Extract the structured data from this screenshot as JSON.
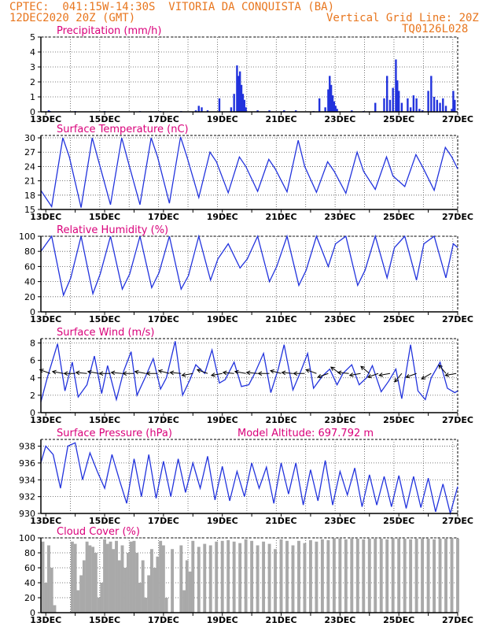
{
  "header": {
    "line1": "CPTEC:  041:15W-14:30S  VITORIA DA CONQUISTA (BA)",
    "line2_left": "12DEC2020 20Z (GMT)",
    "line2_right": "Vertical Grid Line: 20Z",
    "line3_right": "TQ0126L028"
  },
  "colors": {
    "line": "#2233dd",
    "title": "#d9007a",
    "header": "#e8761e",
    "cloud": "#a9a9a9",
    "grid": "#555555"
  },
  "chart_data": [
    {
      "type": "bar",
      "title": "Precipitation (mm/h)",
      "ylim": [
        0,
        5
      ],
      "yticks": [
        0,
        1,
        2,
        3,
        4,
        5
      ],
      "x_ticks": [
        "13DEC",
        "15DEC",
        "17DEC",
        "19DEC",
        "21DEC",
        "23DEC",
        "25DEC",
        "27DEC"
      ],
      "x_domain_days": [
        12.8333,
        27.0
      ],
      "x": [
        13.1,
        13.15,
        14.0,
        15.0,
        16.2,
        16.9,
        17.6,
        18.1,
        18.2,
        18.3,
        18.5,
        18.9,
        19.3,
        19.4,
        19.5,
        19.55,
        19.6,
        19.65,
        19.7,
        19.75,
        19.8,
        20.2,
        20.6,
        21.1,
        21.5,
        22.1,
        22.3,
        22.5,
        22.6,
        22.65,
        22.7,
        22.75,
        22.8,
        22.85,
        22.9,
        23.4,
        23.8,
        24.2,
        24.5,
        24.6,
        24.7,
        24.8,
        24.9,
        24.95,
        25.0,
        25.1,
        25.3,
        25.4,
        25.5,
        25.6,
        25.7,
        25.8,
        26.0,
        26.1,
        26.2,
        26.3,
        26.4,
        26.5,
        26.6,
        26.8,
        26.85,
        26.9
      ],
      "values": [
        0.1,
        0.05,
        0.05,
        0.05,
        0.05,
        0.05,
        0.05,
        0.1,
        0.4,
        0.3,
        0.1,
        0.9,
        0.3,
        1.2,
        3.1,
        2.4,
        2.7,
        1.8,
        1.2,
        0.8,
        0.3,
        0.1,
        0.1,
        0.1,
        0.1,
        0.05,
        0.9,
        0.3,
        1.5,
        2.4,
        1.8,
        1.1,
        0.7,
        0.4,
        0.2,
        0.1,
        0.05,
        0.6,
        0.9,
        2.4,
        0.8,
        1.6,
        3.5,
        2.1,
        1.4,
        0.6,
        0.9,
        0.3,
        1.1,
        0.9,
        0.2,
        0.1,
        1.4,
        2.4,
        1.0,
        0.8,
        0.6,
        0.9,
        0.4,
        0.2,
        1.4,
        0.8
      ]
    },
    {
      "type": "line",
      "title": "Surface Temperature (nC)",
      "ylim": [
        15,
        30.5
      ],
      "yticks": [
        15,
        18,
        21,
        24,
        27,
        30
      ],
      "x_ticks": [
        "13DEC",
        "15DEC",
        "17DEC",
        "19DEC",
        "21DEC",
        "23DEC",
        "25DEC",
        "27DEC"
      ],
      "x_domain_days": [
        12.8333,
        27.0
      ],
      "x": [
        12.83,
        13.2,
        13.58,
        13.8,
        14.2,
        14.58,
        14.8,
        15.2,
        15.58,
        15.8,
        16.2,
        16.58,
        16.8,
        17.2,
        17.58,
        17.8,
        18.2,
        18.58,
        18.8,
        19.2,
        19.58,
        19.8,
        20.2,
        20.58,
        20.8,
        21.2,
        21.58,
        21.8,
        22.2,
        22.58,
        22.8,
        23.2,
        23.58,
        23.8,
        24.2,
        24.58,
        24.8,
        25.2,
        25.58,
        25.8,
        26.2,
        26.58,
        26.8,
        27.0
      ],
      "values": [
        19,
        15.6,
        30,
        26,
        15.4,
        30,
        25,
        16,
        30,
        25,
        16,
        30,
        26,
        16.3,
        30.2,
        26,
        17.5,
        27,
        25,
        18.5,
        26,
        24,
        18.8,
        25.5,
        23.5,
        18.7,
        29.5,
        24,
        18.6,
        25,
        23,
        18.4,
        27,
        23,
        19.2,
        26,
        22,
        19.8,
        26.5,
        24,
        19,
        28,
        26,
        23.5
      ]
    },
    {
      "type": "line",
      "title": "Relative Humidity (%)",
      "ylim": [
        0,
        100
      ],
      "yticks": [
        0,
        20,
        40,
        60,
        80,
        100
      ],
      "x_ticks": [
        "13DEC",
        "15DEC",
        "17DEC",
        "19DEC",
        "21DEC",
        "23DEC",
        "25DEC",
        "27DEC"
      ],
      "x_domain_days": [
        12.8333,
        27.0
      ],
      "x": [
        12.83,
        13.2,
        13.6,
        13.85,
        14.2,
        14.6,
        14.85,
        15.2,
        15.6,
        15.85,
        16.2,
        16.6,
        16.85,
        17.2,
        17.6,
        17.85,
        18.2,
        18.6,
        18.85,
        19.2,
        19.6,
        19.85,
        20.2,
        20.6,
        20.85,
        21.2,
        21.6,
        21.85,
        22.2,
        22.6,
        22.85,
        23.2,
        23.6,
        23.85,
        24.2,
        24.6,
        24.85,
        25.2,
        25.6,
        25.85,
        26.2,
        26.6,
        26.85,
        27.0
      ],
      "values": [
        80,
        100,
        22,
        45,
        100,
        24,
        50,
        100,
        30,
        50,
        100,
        32,
        52,
        100,
        30,
        48,
        100,
        42,
        70,
        90,
        58,
        70,
        100,
        40,
        60,
        100,
        35,
        55,
        100,
        60,
        90,
        100,
        35,
        55,
        100,
        45,
        85,
        100,
        42,
        90,
        100,
        45,
        90,
        85
      ]
    },
    {
      "type": "line",
      "title": "Surface Wind (m/s)",
      "ylim": [
        0,
        8.5
      ],
      "yticks": [
        0,
        2,
        4,
        6,
        8
      ],
      "x_ticks": [
        "13DEC",
        "15DEC",
        "17DEC",
        "19DEC",
        "21DEC",
        "23DEC",
        "25DEC",
        "27DEC"
      ],
      "x_domain_days": [
        12.8333,
        27.0
      ],
      "x": [
        12.83,
        13.05,
        13.4,
        13.65,
        13.9,
        14.1,
        14.4,
        14.65,
        14.9,
        15.1,
        15.4,
        15.65,
        15.9,
        16.1,
        16.4,
        16.65,
        16.9,
        17.1,
        17.4,
        17.65,
        17.9,
        18.1,
        18.4,
        18.65,
        18.9,
        19.1,
        19.4,
        19.65,
        19.9,
        20.1,
        20.4,
        20.65,
        20.9,
        21.1,
        21.4,
        21.65,
        21.9,
        22.1,
        22.4,
        22.65,
        22.9,
        23.1,
        23.4,
        23.65,
        23.9,
        24.1,
        24.4,
        24.65,
        24.9,
        25.1,
        25.4,
        25.65,
        25.9,
        26.1,
        26.4,
        26.65,
        26.9,
        27.0
      ],
      "values": [
        1.2,
        4.0,
        7.9,
        2.5,
        5.8,
        1.8,
        3.2,
        6.5,
        2.2,
        5.4,
        1.5,
        4.8,
        7.0,
        2.0,
        4.2,
        6.2,
        2.7,
        4.0,
        8.2,
        2.0,
        3.8,
        5.5,
        4.5,
        7.2,
        3.4,
        3.8,
        5.8,
        3.0,
        3.2,
        4.5,
        6.8,
        2.3,
        5.0,
        7.8,
        2.6,
        4.6,
        6.8,
        2.8,
        4.2,
        5.0,
        3.2,
        4.5,
        5.5,
        3.2,
        4.0,
        5.4,
        2.4,
        3.6,
        5.0,
        1.6,
        7.8,
        2.5,
        1.5,
        4.0,
        5.8,
        2.8,
        2.3,
        2.5
      ],
      "arrows": [
        {
          "day": 13.15,
          "angle": 160
        },
        {
          "day": 13.6,
          "angle": 170
        },
        {
          "day": 14.0,
          "angle": 180
        },
        {
          "day": 14.4,
          "angle": 175
        },
        {
          "day": 14.8,
          "angle": 170
        },
        {
          "day": 15.2,
          "angle": 180
        },
        {
          "day": 15.6,
          "angle": 175
        },
        {
          "day": 16.0,
          "angle": 180
        },
        {
          "day": 16.4,
          "angle": 170
        },
        {
          "day": 16.8,
          "angle": 180
        },
        {
          "day": 17.2,
          "angle": 165
        },
        {
          "day": 17.6,
          "angle": 175
        },
        {
          "day": 18.0,
          "angle": 190
        },
        {
          "day": 18.5,
          "angle": 160
        },
        {
          "day": 19.0,
          "angle": 190
        },
        {
          "day": 19.4,
          "angle": 175
        },
        {
          "day": 19.8,
          "angle": 170
        },
        {
          "day": 20.2,
          "angle": 175
        },
        {
          "day": 20.6,
          "angle": 180
        },
        {
          "day": 21.0,
          "angle": 165
        },
        {
          "day": 21.4,
          "angle": 175
        },
        {
          "day": 21.8,
          "angle": 180
        },
        {
          "day": 22.2,
          "angle": 160
        },
        {
          "day": 22.6,
          "angle": 200
        },
        {
          "day": 23.0,
          "angle": 145
        },
        {
          "day": 23.3,
          "angle": 175
        },
        {
          "day": 23.7,
          "angle": 190
        },
        {
          "day": 24.0,
          "angle": 140
        },
        {
          "day": 24.3,
          "angle": 200
        },
        {
          "day": 24.7,
          "angle": 190
        },
        {
          "day": 25.1,
          "angle": 230
        },
        {
          "day": 25.6,
          "angle": 200
        },
        {
          "day": 26.1,
          "angle": 210
        },
        {
          "day": 26.6,
          "angle": 130
        },
        {
          "day": 26.95,
          "angle": 190
        }
      ]
    },
    {
      "type": "line",
      "title": "Surface Pressure (hPa)",
      "annotation": "Model Altitude: 697.792 m",
      "ylim": [
        930,
        938.8
      ],
      "yticks": [
        930,
        932,
        934,
        936,
        938
      ],
      "x_ticks": [
        "13DEC",
        "15DEC",
        "17DEC",
        "19DEC",
        "21DEC",
        "23DEC",
        "25DEC",
        "27DEC"
      ],
      "x_domain_days": [
        12.8333,
        27.0
      ],
      "x": [
        12.83,
        13.0,
        13.25,
        13.5,
        13.75,
        14.0,
        14.25,
        14.5,
        14.75,
        15.0,
        15.25,
        15.5,
        15.75,
        16.0,
        16.25,
        16.5,
        16.75,
        17.0,
        17.25,
        17.5,
        17.75,
        18.0,
        18.25,
        18.5,
        18.75,
        19.0,
        19.25,
        19.5,
        19.75,
        20.0,
        20.25,
        20.5,
        20.75,
        21.0,
        21.25,
        21.5,
        21.75,
        22.0,
        22.25,
        22.5,
        22.75,
        23.0,
        23.25,
        23.5,
        23.75,
        24.0,
        24.25,
        24.5,
        24.75,
        25.0,
        25.25,
        25.5,
        25.75,
        26.0,
        26.25,
        26.5,
        26.75,
        27.0
      ],
      "values": [
        936,
        938,
        937,
        933,
        938,
        938.4,
        934,
        937.2,
        935,
        933,
        937,
        934,
        931.2,
        936.5,
        932,
        937,
        931.8,
        936.2,
        932,
        936.5,
        932.5,
        936,
        933,
        936.8,
        931.6,
        935.6,
        931.5,
        935,
        932,
        936,
        933,
        935.5,
        931.2,
        936,
        932.3,
        936,
        931,
        935.2,
        931.5,
        936.3,
        931,
        935,
        932.2,
        935.4,
        930.8,
        934.6,
        931,
        934.4,
        930.8,
        934.5,
        930.6,
        934.4,
        930.7,
        934.2,
        930.2,
        933.5,
        930,
        933.2
      ]
    },
    {
      "type": "bar",
      "title": "Cloud Cover (%)",
      "ylim": [
        0,
        100
      ],
      "yticks": [
        0,
        20,
        40,
        60,
        80,
        100
      ],
      "x_ticks": [
        "13DEC",
        "15DEC",
        "17DEC",
        "19DEC",
        "21DEC",
        "23DEC",
        "25DEC",
        "27DEC"
      ],
      "x_domain_days": [
        12.8333,
        27.0
      ],
      "x": [
        12.9,
        13.0,
        13.1,
        13.2,
        13.3,
        13.4,
        13.5,
        13.6,
        13.7,
        13.8,
        13.9,
        14.0,
        14.1,
        14.2,
        14.3,
        14.4,
        14.5,
        14.6,
        14.7,
        14.8,
        14.9,
        15.0,
        15.1,
        15.2,
        15.3,
        15.4,
        15.5,
        15.6,
        15.7,
        15.8,
        15.9,
        16.0,
        16.1,
        16.2,
        16.3,
        16.4,
        16.5,
        16.6,
        16.7,
        16.8,
        16.9,
        17.0,
        17.1,
        17.2,
        17.3,
        17.4,
        17.5,
        17.6,
        17.7,
        17.8,
        17.9,
        18.0,
        18.2,
        18.4,
        18.6,
        18.8,
        19.0,
        19.2,
        19.4,
        19.6,
        19.8,
        20.0,
        20.2,
        20.4,
        20.6,
        20.8,
        21.0,
        21.2,
        21.4,
        21.6,
        21.8,
        22.0,
        22.2,
        22.4,
        22.6,
        22.8,
        23.0,
        23.2,
        23.4,
        23.6,
        23.8,
        24.0,
        24.2,
        24.4,
        24.6,
        24.8,
        25.0,
        25.2,
        25.4,
        25.6,
        25.8,
        26.0,
        26.2,
        26.4,
        26.6,
        26.8,
        27.0
      ],
      "values": [
        95,
        40,
        90,
        60,
        10,
        0,
        0,
        0,
        0,
        0,
        95,
        92,
        30,
        50,
        70,
        95,
        90,
        88,
        80,
        20,
        40,
        98,
        92,
        95,
        85,
        96,
        70,
        90,
        60,
        80,
        95,
        96,
        80,
        40,
        70,
        20,
        50,
        85,
        60,
        75,
        96,
        90,
        20,
        0,
        85,
        0,
        0,
        90,
        30,
        70,
        55,
        96,
        88,
        92,
        90,
        95,
        96,
        97,
        95,
        93,
        98,
        96,
        90,
        95,
        92,
        85,
        98,
        96,
        90,
        96,
        93,
        97,
        95,
        98,
        97,
        99,
        99,
        98,
        99,
        99,
        98,
        99,
        99,
        99,
        98,
        99,
        99,
        99,
        98,
        99,
        99,
        99,
        98,
        99,
        99,
        99,
        99
      ]
    }
  ]
}
